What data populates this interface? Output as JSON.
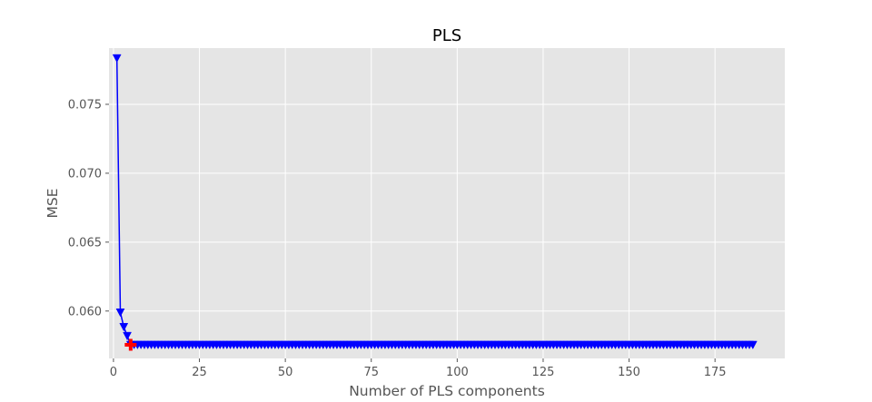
{
  "chart_data": {
    "type": "line",
    "title": "PLS",
    "xlabel": "Number of PLS components",
    "ylabel": "MSE",
    "xlim": [
      -1.3,
      195.3
    ],
    "ylim": [
      0.05656,
      0.07908
    ],
    "xticks": [
      0,
      25,
      50,
      75,
      100,
      125,
      150,
      175
    ],
    "xtick_labels": [
      "0",
      "25",
      "50",
      "75",
      "100",
      "125",
      "150",
      "175"
    ],
    "yticks": [
      0.06,
      0.065,
      0.07,
      0.075
    ],
    "ytick_labels": [
      "0.060",
      "0.065",
      "0.070",
      "0.075"
    ],
    "grid": true,
    "style": "ggplot",
    "series": [
      {
        "x_start": 1,
        "x_end": 186,
        "values_head": [
          0.07835,
          0.0599,
          0.05885,
          0.0582
        ],
        "values_tail_constant": 0.05755,
        "color": "#0000ff",
        "marker": "triangle-down"
      }
    ],
    "annotations": [
      {
        "type": "marker",
        "shape": "plus",
        "x": 5,
        "y": 0.05755,
        "color": "#ff0000"
      }
    ]
  }
}
